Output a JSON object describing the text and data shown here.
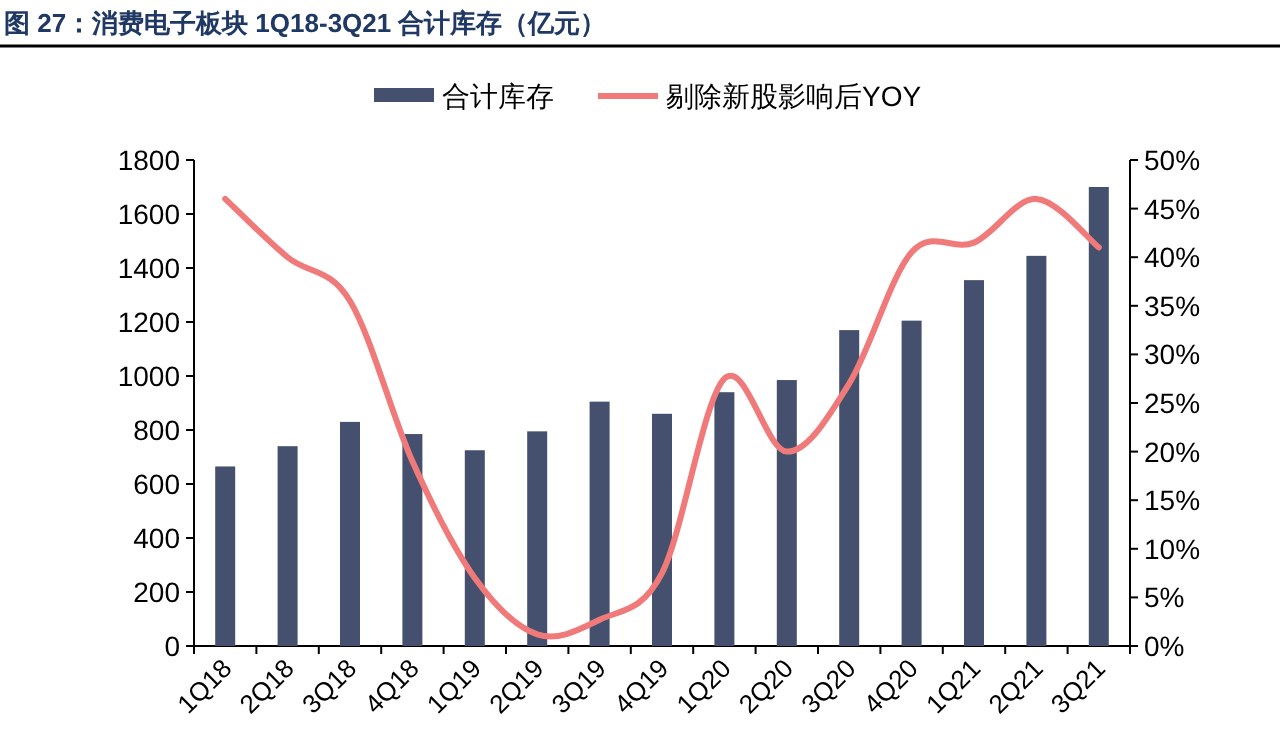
{
  "chart_data": {
    "type": "bar",
    "title": "图 27：消费电子板块 1Q18-3Q21 合计库存（亿元）",
    "categories": [
      "1Q18",
      "2Q18",
      "3Q18",
      "4Q18",
      "1Q19",
      "2Q19",
      "3Q19",
      "4Q19",
      "1Q20",
      "2Q20",
      "3Q20",
      "4Q20",
      "1Q21",
      "2Q21",
      "3Q21"
    ],
    "series": [
      {
        "name": "合计库存",
        "color": "#44506e",
        "values": [
          665,
          740,
          830,
          785,
          725,
          795,
          905,
          860,
          940,
          985,
          1170,
          1205,
          1355,
          1445,
          1700
        ]
      },
      {
        "name": "剔除新股影响后YOY",
        "type": "line",
        "axis": "y2",
        "color": "#f07a7a",
        "values": [
          46,
          40,
          35.5,
          19,
          7,
          1.2,
          2.7,
          7.5,
          27.5,
          20,
          27,
          40.5,
          41.5,
          46,
          41
        ]
      }
    ],
    "ylim": [
      0,
      1800
    ],
    "yticks": [
      0,
      200,
      400,
      600,
      800,
      1000,
      1200,
      1400,
      1600,
      1800
    ],
    "y2lim": [
      0,
      50
    ],
    "y2ticks": [
      {
        "value": 0,
        "label": "0%"
      },
      {
        "value": 5,
        "label": "5%"
      },
      {
        "value": 10,
        "label": "10%"
      },
      {
        "value": 15,
        "label": "15%"
      },
      {
        "value": 20,
        "label": "20%"
      },
      {
        "value": 25,
        "label": "25%"
      },
      {
        "value": 30,
        "label": "30%"
      },
      {
        "value": 35,
        "label": "35%"
      },
      {
        "value": 40,
        "label": "40%"
      },
      {
        "value": 45,
        "label": "45%"
      },
      {
        "value": 50,
        "label": "50%"
      }
    ],
    "legend": "top",
    "grid": false
  }
}
